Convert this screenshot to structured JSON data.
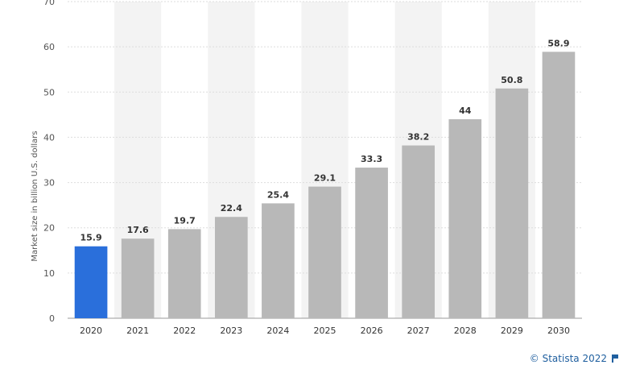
{
  "chart_data": {
    "type": "bar",
    "title": "",
    "xlabel": "",
    "ylabel": "Market size in billion U.S. dollars",
    "categories": [
      "2020",
      "2021",
      "2022",
      "2023",
      "2024",
      "2025",
      "2026",
      "2027",
      "2028",
      "2029",
      "2030"
    ],
    "values": [
      15.9,
      17.6,
      19.7,
      22.4,
      25.4,
      29.1,
      33.3,
      38.2,
      44,
      50.8,
      58.9
    ],
    "value_labels": [
      "15.9",
      "17.6",
      "19.7",
      "22.4",
      "25.4",
      "29.1",
      "33.3",
      "38.2",
      "44",
      "50.8",
      "58.9"
    ],
    "ylim": [
      0,
      70
    ],
    "yticks": [
      0,
      10,
      20,
      30,
      40,
      50,
      60,
      70
    ],
    "grid": true,
    "colors": {
      "highlight": "#2a6fdb",
      "bar": "#b8b8b8",
      "band": "#f3f3f3",
      "grid": "#dddddd"
    },
    "highlight_index": 0
  },
  "credit": {
    "text": "© Statista 2022",
    "icon": "flag-icon"
  }
}
